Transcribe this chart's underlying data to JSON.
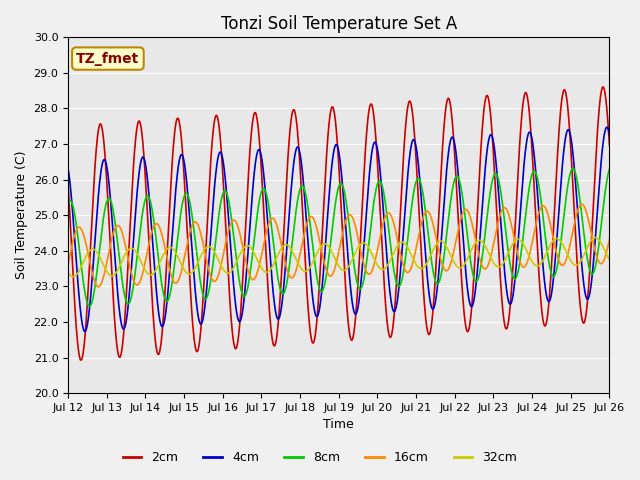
{
  "title": "Tonzi Soil Temperature Set A",
  "xlabel": "Time",
  "ylabel": "Soil Temperature (C)",
  "annotation_text": "TZ_fmet",
  "annotation_bbox_facecolor": "#ffffcc",
  "annotation_bbox_edgecolor": "#bb8800",
  "ylim": [
    20.0,
    30.0
  ],
  "yticks": [
    20.0,
    21.0,
    22.0,
    23.0,
    24.0,
    25.0,
    26.0,
    27.0,
    28.0,
    29.0,
    30.0
  ],
  "xtick_days": [
    12,
    13,
    14,
    15,
    16,
    17,
    18,
    19,
    20,
    21,
    22,
    23,
    24,
    25,
    26
  ],
  "series": [
    {
      "label": "2cm",
      "color": "#cc0000",
      "amplitude": 3.3,
      "mean": 24.2,
      "phase_days": 0.0,
      "trend_per_day": 0.08
    },
    {
      "label": "4cm",
      "color": "#0000cc",
      "amplitude": 2.4,
      "mean": 24.1,
      "phase_days": 0.1,
      "trend_per_day": 0.07
    },
    {
      "label": "8cm",
      "color": "#00cc00",
      "amplitude": 1.5,
      "mean": 23.9,
      "phase_days": 0.22,
      "trend_per_day": 0.07
    },
    {
      "label": "16cm",
      "color": "#ff8800",
      "amplitude": 0.85,
      "mean": 23.8,
      "phase_days": 0.45,
      "trend_per_day": 0.05
    },
    {
      "label": "32cm",
      "color": "#cccc00",
      "amplitude": 0.38,
      "mean": 23.65,
      "phase_days": 0.8,
      "trend_per_day": 0.025
    }
  ],
  "fig_bg": "#f0f0f0",
  "ax_bg": "#e8e8e8",
  "grid_color": "#ffffff",
  "title_fontsize": 12,
  "axis_label_fontsize": 9,
  "tick_fontsize": 8,
  "legend_fontsize": 9,
  "linewidth": 1.2
}
